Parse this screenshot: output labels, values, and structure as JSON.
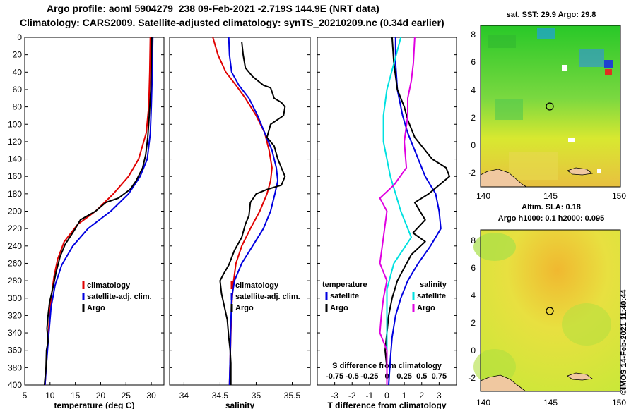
{
  "header": {
    "line1": "Argo profile: aoml 5904279_238 09-Feb-2021 -2.719S 144.9E (NRT data)",
    "line2": "Climatology: CARS2009. Satellite-adjusted climatology: synTS_20210209.nc (0.34d earlier)"
  },
  "footer_vertical": "©IMOS 14-Feb-2021 11:40:44",
  "colors": {
    "red": "#e00000",
    "blue": "#0000e0",
    "black": "#000000",
    "cyan": "#00e0e0",
    "magenta": "#e000e0"
  },
  "chart_data": [
    {
      "id": "temperature",
      "type": "line",
      "xlabel": "temperature (deg C)",
      "ylabel": "depth",
      "xlim": [
        5,
        32.5
      ],
      "ylim": [
        400,
        0
      ],
      "xticks": [
        5,
        10,
        15,
        20,
        25,
        30
      ],
      "yticks": [
        0,
        20,
        40,
        60,
        80,
        100,
        120,
        140,
        160,
        180,
        200,
        220,
        240,
        260,
        280,
        300,
        320,
        340,
        360,
        380,
        400
      ],
      "legend": [
        "climatology",
        "satellite-adj. clim.",
        "Argo"
      ],
      "series": [
        {
          "name": "climatology",
          "color": "red",
          "points": [
            [
              29.8,
              0
            ],
            [
              29.7,
              40
            ],
            [
              29.5,
              80
            ],
            [
              29.0,
              110
            ],
            [
              27.5,
              140
            ],
            [
              25.5,
              160
            ],
            [
              22.5,
              180
            ],
            [
              19.0,
              200
            ],
            [
              15.5,
              215
            ],
            [
              12.8,
              235
            ],
            [
              11.5,
              255
            ],
            [
              10.8,
              275
            ],
            [
              10.2,
              300
            ],
            [
              9.8,
              330
            ],
            [
              9.4,
              365
            ],
            [
              9.0,
              400
            ]
          ]
        },
        {
          "name": "satellite-adj. clim.",
          "color": "blue",
          "points": [
            [
              30.3,
              0
            ],
            [
              30.2,
              40
            ],
            [
              30.0,
              80
            ],
            [
              29.8,
              110
            ],
            [
              29.2,
              140
            ],
            [
              27.8,
              160
            ],
            [
              25.5,
              180
            ],
            [
              22.0,
              200
            ],
            [
              17.5,
              220
            ],
            [
              14.5,
              240
            ],
            [
              12.3,
              262
            ],
            [
              11.0,
              285
            ],
            [
              10.2,
              310
            ],
            [
              9.7,
              345
            ],
            [
              9.3,
              375
            ],
            [
              9.0,
              400
            ]
          ]
        },
        {
          "name": "Argo",
          "color": "black",
          "points": [
            [
              30.1,
              0
            ],
            [
              30.0,
              30
            ],
            [
              29.9,
              60
            ],
            [
              29.6,
              90
            ],
            [
              29.3,
              115
            ],
            [
              28.9,
              135
            ],
            [
              28.3,
              150
            ],
            [
              27.0,
              165
            ],
            [
              25.8,
              175
            ],
            [
              23.5,
              185
            ],
            [
              21.0,
              190
            ],
            [
              19.0,
              200
            ],
            [
              16.0,
              210
            ],
            [
              14.8,
              222
            ],
            [
              13.0,
              238
            ],
            [
              12.0,
              252
            ],
            [
              11.2,
              270
            ],
            [
              10.5,
              290
            ],
            [
              9.9,
              305
            ],
            [
              9.6,
              320
            ],
            [
              9.4,
              335
            ],
            [
              9.6,
              350
            ],
            [
              9.3,
              360
            ],
            [
              9.2,
              380
            ],
            [
              8.9,
              400
            ]
          ]
        }
      ]
    },
    {
      "id": "salinity",
      "type": "line",
      "xlabel": "salinity",
      "ylabel": "depth",
      "xlim": [
        33.8,
        35.75
      ],
      "ylim": [
        400,
        0
      ],
      "xticks": [
        34,
        34.5,
        35,
        35.5
      ],
      "yticks": [
        0,
        20,
        40,
        60,
        80,
        100,
        120,
        140,
        160,
        180,
        200,
        220,
        240,
        260,
        280,
        300,
        320,
        340,
        360,
        380,
        400
      ],
      "legend": [
        "climatology",
        "satellite-adj. clim.",
        "Argo"
      ],
      "series": [
        {
          "name": "climatology",
          "color": "red",
          "points": [
            [
              34.4,
              0
            ],
            [
              34.47,
              20
            ],
            [
              34.58,
              40
            ],
            [
              34.72,
              55
            ],
            [
              34.85,
              70
            ],
            [
              35.0,
              90
            ],
            [
              35.12,
              110
            ],
            [
              35.18,
              130
            ],
            [
              35.22,
              150
            ],
            [
              35.2,
              165
            ],
            [
              35.15,
              180
            ],
            [
              35.05,
              200
            ],
            [
              34.92,
              220
            ],
            [
              34.8,
              240
            ],
            [
              34.72,
              260
            ],
            [
              34.68,
              285
            ],
            [
              34.66,
              310
            ],
            [
              34.65,
              340
            ],
            [
              34.64,
              370
            ],
            [
              34.63,
              400
            ]
          ]
        },
        {
          "name": "satellite-adj. clim.",
          "color": "blue",
          "points": [
            [
              34.62,
              0
            ],
            [
              34.63,
              20
            ],
            [
              34.66,
              40
            ],
            [
              34.76,
              55
            ],
            [
              34.9,
              70
            ],
            [
              35.02,
              90
            ],
            [
              35.12,
              110
            ],
            [
              35.22,
              130
            ],
            [
              35.28,
              150
            ],
            [
              35.3,
              165
            ],
            [
              35.26,
              180
            ],
            [
              35.2,
              200
            ],
            [
              35.1,
              220
            ],
            [
              34.95,
              240
            ],
            [
              34.8,
              260
            ],
            [
              34.7,
              280
            ],
            [
              34.66,
              300
            ],
            [
              34.65,
              330
            ],
            [
              34.64,
              370
            ],
            [
              34.63,
              400
            ]
          ]
        },
        {
          "name": "Argo",
          "color": "black",
          "points": [
            [
              34.8,
              5
            ],
            [
              34.82,
              20
            ],
            [
              34.85,
              35
            ],
            [
              34.95,
              45
            ],
            [
              35.1,
              55
            ],
            [
              35.2,
              58
            ],
            [
              35.25,
              70
            ],
            [
              35.35,
              75
            ],
            [
              35.4,
              80
            ],
            [
              35.38,
              90
            ],
            [
              35.2,
              100
            ],
            [
              35.15,
              115
            ],
            [
              35.25,
              125
            ],
            [
              35.3,
              140
            ],
            [
              35.4,
              160
            ],
            [
              35.35,
              170
            ],
            [
              35.15,
              175
            ],
            [
              35.0,
              180
            ],
            [
              34.92,
              190
            ],
            [
              34.9,
              205
            ],
            [
              34.85,
              215
            ],
            [
              34.8,
              230
            ],
            [
              34.7,
              245
            ],
            [
              34.62,
              262
            ],
            [
              34.55,
              272
            ],
            [
              34.5,
              280
            ],
            [
              34.52,
              295
            ],
            [
              34.56,
              310
            ],
            [
              34.6,
              325
            ],
            [
              34.62,
              345
            ],
            [
              34.64,
              360
            ],
            [
              34.65,
              375
            ],
            [
              34.65,
              400
            ]
          ]
        }
      ]
    },
    {
      "id": "difference",
      "type": "line",
      "xlabel": "T difference from climatology",
      "xlabel_top": "S difference from climatology",
      "ylabel": "depth",
      "xlim": [
        -4,
        4
      ],
      "ylim": [
        400,
        0
      ],
      "xticks": [
        -3,
        -2,
        -1,
        0,
        1,
        2,
        3
      ],
      "xticks_top": [
        -0.75,
        -0.5,
        -0.25,
        0,
        0.25,
        0.5,
        0.75
      ],
      "xtick_top_labels": [
        "-0.75",
        "-0.5",
        "-0.25",
        "0",
        "0.25",
        "0.5",
        "0.75"
      ],
      "yticks": [
        0,
        20,
        40,
        60,
        80,
        100,
        120,
        140,
        160,
        180,
        200,
        220,
        240,
        260,
        280,
        300,
        320,
        340,
        360,
        380,
        400
      ],
      "legend_left_title": "temperature",
      "legend_right_title": "salinity",
      "legend": [
        "satellite",
        "Argo",
        "satellite",
        "Argo"
      ],
      "series": [
        {
          "name": "T satellite",
          "color": "blue",
          "points": [
            [
              0.5,
              0
            ],
            [
              0.5,
              30
            ],
            [
              0.6,
              60
            ],
            [
              0.9,
              90
            ],
            [
              1.2,
              110
            ],
            [
              1.8,
              140
            ],
            [
              2.2,
              160
            ],
            [
              2.8,
              180
            ],
            [
              3.0,
              200
            ],
            [
              3.1,
              220
            ],
            [
              2.5,
              240
            ],
            [
              1.8,
              260
            ],
            [
              1.2,
              280
            ],
            [
              0.8,
              300
            ],
            [
              0.5,
              320
            ],
            [
              0.3,
              345
            ],
            [
              0.2,
              370
            ],
            [
              0.1,
              400
            ]
          ]
        },
        {
          "name": "T Argo",
          "color": "black",
          "points": [
            [
              0.3,
              0
            ],
            [
              0.4,
              30
            ],
            [
              0.6,
              60
            ],
            [
              1.0,
              80
            ],
            [
              1.2,
              95
            ],
            [
              1.6,
              115
            ],
            [
              2.6,
              140
            ],
            [
              3.4,
              150
            ],
            [
              3.6,
              160
            ],
            [
              3.0,
              170
            ],
            [
              2.4,
              180
            ],
            [
              1.6,
              190
            ],
            [
              2.2,
              210
            ],
            [
              1.5,
              225
            ],
            [
              2.2,
              235
            ],
            [
              1.4,
              250
            ],
            [
              1.0,
              265
            ],
            [
              0.6,
              280
            ],
            [
              0.3,
              300
            ],
            [
              0.1,
              320
            ],
            [
              0.0,
              340
            ],
            [
              -0.1,
              360
            ],
            [
              0.0,
              380
            ],
            [
              0.0,
              400
            ]
          ]
        },
        {
          "name": "S satellite",
          "color": "cyan",
          "points": [
            [
              0.2,
              0
            ],
            [
              0.1,
              30
            ],
            [
              0.0,
              60
            ],
            [
              -0.05,
              90
            ],
            [
              -0.05,
              120
            ],
            [
              0.05,
              160
            ],
            [
              0.2,
              200
            ],
            [
              0.35,
              230
            ],
            [
              0.1,
              260
            ],
            [
              0.0,
              290
            ],
            [
              0.0,
              330
            ],
            [
              0.0,
              400
            ]
          ]
        },
        {
          "name": "S Argo",
          "color": "magenta",
          "points": [
            [
              0.4,
              0
            ],
            [
              0.38,
              30
            ],
            [
              0.35,
              50
            ],
            [
              0.3,
              70
            ],
            [
              0.3,
              90
            ],
            [
              0.25,
              120
            ],
            [
              0.28,
              150
            ],
            [
              0.1,
              170
            ],
            [
              -0.1,
              185
            ],
            [
              0.0,
              200
            ],
            [
              -0.05,
              230
            ],
            [
              -0.1,
              260
            ],
            [
              0.0,
              280
            ],
            [
              -0.05,
              300
            ],
            [
              -0.08,
              320
            ],
            [
              -0.1,
              340
            ],
            [
              0.0,
              360
            ],
            [
              0.0,
              400
            ]
          ]
        }
      ]
    },
    {
      "id": "sst_map",
      "type": "heatmap",
      "title": "sat. SST: 29.9 Argo: 29.8",
      "xticks": [
        140,
        145,
        150
      ],
      "yticks": [
        8,
        6,
        4,
        2,
        0,
        -2
      ],
      "xlim": [
        139.5,
        150.5
      ],
      "ylim": [
        -3,
        8.7
      ],
      "argo_marker": [
        144.9,
        2.7
      ]
    },
    {
      "id": "sla_map",
      "type": "heatmap",
      "title": "Altim. SLA: 0.18",
      "subtitle": "Argo h1000: 0.1 h2000: 0.095",
      "xticks": [
        140,
        145,
        150
      ],
      "yticks": [
        8,
        6,
        4,
        2,
        0,
        -2
      ],
      "xlim": [
        139.5,
        150.5
      ],
      "ylim": [
        -3,
        8.7
      ],
      "argo_marker": [
        144.9,
        2.7
      ]
    }
  ]
}
